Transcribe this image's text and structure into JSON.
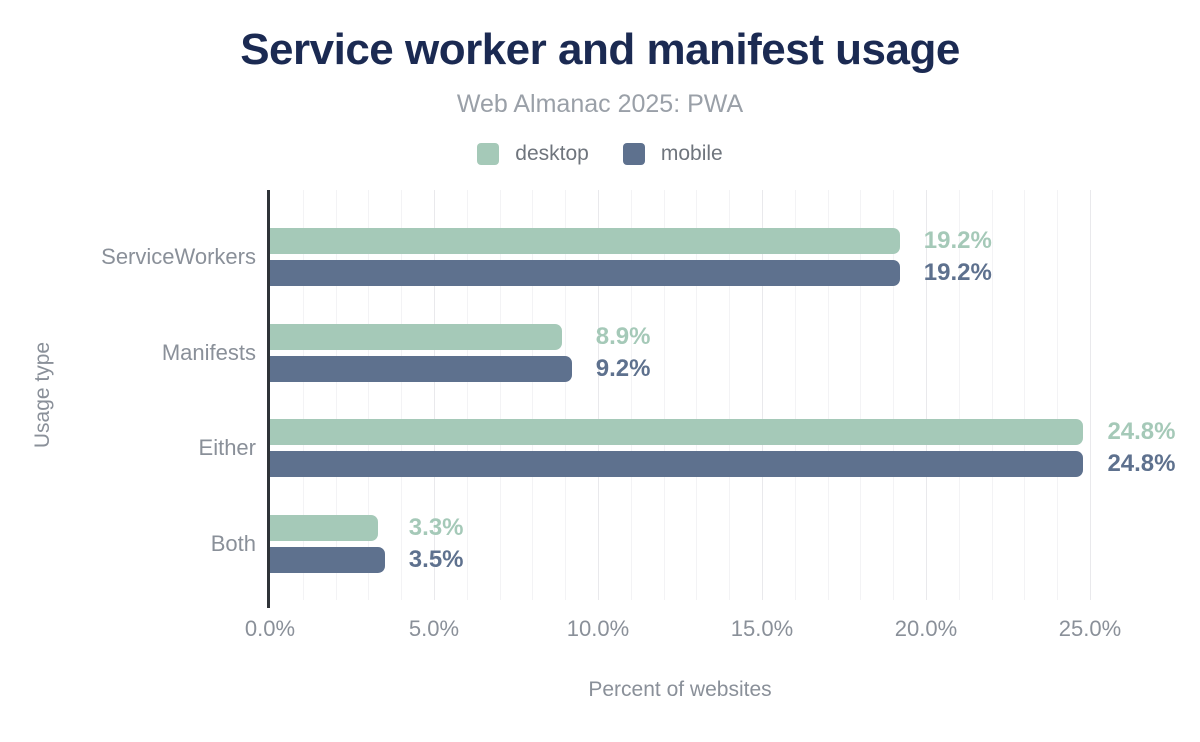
{
  "chart": {
    "title": "Service worker and manifest usage",
    "subtitle": "Web Almanac 2025: PWA",
    "xlabel": "Percent of websites",
    "ylabel": "Usage type"
  },
  "chart_data": {
    "type": "bar",
    "orientation": "horizontal",
    "title": "Service worker and manifest usage",
    "subtitle": "Web Almanac 2025: PWA",
    "xlabel": "Percent of websites",
    "ylabel": "Usage type",
    "categories": [
      "ServiceWorkers",
      "Manifests",
      "Either",
      "Both"
    ],
    "series": [
      {
        "name": "desktop",
        "color": "#a5c9b8",
        "values": [
          19.2,
          8.9,
          24.8,
          3.3
        ],
        "labels": [
          "19.2%",
          "8.9%",
          "24.8%",
          "3.3%"
        ]
      },
      {
        "name": "mobile",
        "color": "#5e718e",
        "values": [
          19.2,
          9.2,
          24.8,
          3.5
        ],
        "labels": [
          "19.2%",
          "9.2%",
          "24.8%",
          "3.5%"
        ]
      }
    ],
    "x_ticks": [
      "0.0%",
      "5.0%",
      "10.0%",
      "15.0%",
      "20.0%",
      "25.0%"
    ],
    "xlim": [
      0,
      25
    ],
    "grid": "vertical minor gridlines every 1%, major every 5%",
    "legend_position": "top"
  },
  "colors": {
    "title": "#1b2a52",
    "subtitle": "#9aa0a8",
    "axis_text": "#8a9099",
    "legend_text": "#6f757d",
    "axis_line": "#2f3338",
    "background": "#ffffff"
  }
}
